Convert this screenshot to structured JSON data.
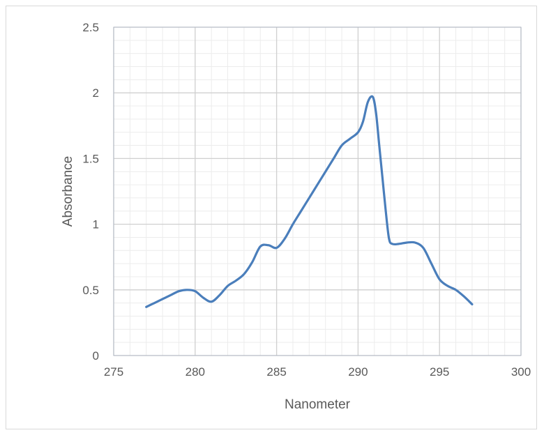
{
  "chart_data": {
    "type": "line",
    "title": "",
    "xlabel": "Nanometer",
    "ylabel": "Absorbance",
    "xlim": [
      275,
      300
    ],
    "ylim": [
      0,
      2.5
    ],
    "x_ticks": [
      "275",
      "280",
      "285",
      "290",
      "295",
      "300"
    ],
    "y_ticks": [
      "0",
      "0.5",
      "1",
      "1.5",
      "2",
      "2.5"
    ],
    "x_minor_step": 1,
    "y_minor_step": 0.1,
    "grid": true,
    "legend": "none",
    "series": [
      {
        "color": "#4a7ebb",
        "x": [
          277,
          277.5,
          278,
          278.5,
          279,
          279.5,
          280,
          280.5,
          281,
          281.5,
          282,
          282.5,
          283,
          283.5,
          284,
          284.5,
          285,
          285.5,
          286,
          286.5,
          287,
          287.5,
          288,
          288.5,
          289,
          289.5,
          290,
          290.3,
          290.6,
          290.9,
          291.1,
          291.3,
          291.5,
          291.7,
          291.9,
          292.1,
          292.5,
          293,
          293.5,
          294,
          294.5,
          295,
          295.5,
          296,
          296.5,
          297
        ],
        "y": [
          0.37,
          0.4,
          0.43,
          0.46,
          0.49,
          0.5,
          0.49,
          0.44,
          0.41,
          0.46,
          0.53,
          0.57,
          0.62,
          0.71,
          0.83,
          0.84,
          0.82,
          0.89,
          1.0,
          1.1,
          1.2,
          1.3,
          1.4,
          1.5,
          1.6,
          1.65,
          1.7,
          1.78,
          1.93,
          1.97,
          1.85,
          1.6,
          1.35,
          1.1,
          0.89,
          0.85,
          0.85,
          0.86,
          0.86,
          0.82,
          0.7,
          0.58,
          0.53,
          0.5,
          0.45,
          0.39
        ]
      }
    ]
  }
}
